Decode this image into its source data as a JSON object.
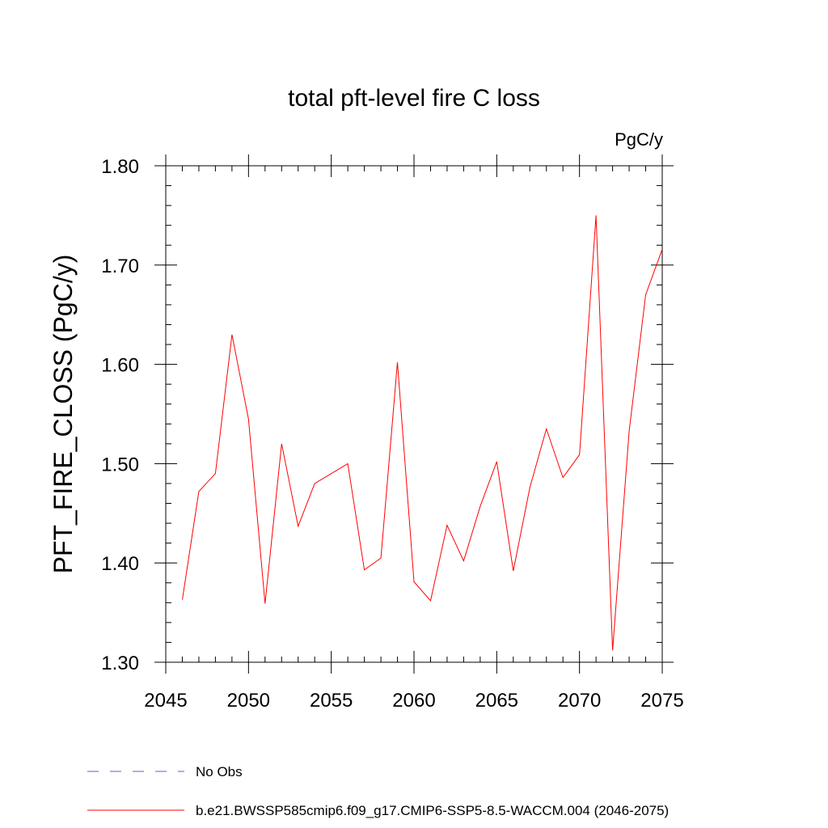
{
  "chart_data": {
    "type": "line",
    "title": "total pft-level fire C loss",
    "units_label": "PgC/y",
    "xlabel": "",
    "ylabel": "PFT_FIRE_CLOSS  (PgC/y)",
    "xlim": [
      2045,
      2075
    ],
    "ylim": [
      1.3,
      1.8
    ],
    "x_ticks": [
      2045,
      2050,
      2055,
      2060,
      2065,
      2070,
      2075
    ],
    "x_tick_labels": [
      "2045",
      "2050",
      "2055",
      "2060",
      "2065",
      "2070",
      "2075"
    ],
    "y_ticks": [
      1.3,
      1.4,
      1.5,
      1.6,
      1.7,
      1.8
    ],
    "y_tick_labels": [
      "1.30",
      "1.40",
      "1.50",
      "1.60",
      "1.70",
      "1.80"
    ],
    "grid": false,
    "legend_position": "bottom",
    "series": [
      {
        "name": "b.e21.BWSSP585cmip6.f09_g17.CMIP6-SSP5-8.5-WACCM.004 (2046-2075)",
        "color": "#ff0000",
        "style": "solid",
        "x": [
          2046,
          2047,
          2048,
          2049,
          2050,
          2051,
          2052,
          2053,
          2054,
          2055,
          2056,
          2057,
          2058,
          2059,
          2060,
          2061,
          2062,
          2063,
          2064,
          2065,
          2066,
          2067,
          2068,
          2069,
          2070,
          2071,
          2072,
          2073,
          2074,
          2075
        ],
        "values": [
          1.363,
          1.472,
          1.49,
          1.63,
          1.545,
          1.359,
          1.52,
          1.437,
          1.48,
          1.49,
          1.5,
          1.393,
          1.405,
          1.602,
          1.381,
          1.362,
          1.438,
          1.402,
          1.457,
          1.502,
          1.392,
          1.476,
          1.535,
          1.486,
          1.509,
          1.75,
          1.312,
          1.533,
          1.67,
          1.716
        ]
      }
    ],
    "legend": [
      {
        "label": "No Obs",
        "color": "#6a5acd",
        "style": "dashed"
      },
      {
        "label": "b.e21.BWSSP585cmip6.f09_g17.CMIP6-SSP5-8.5-WACCM.004 (2046-2075)",
        "color": "#ff0000",
        "style": "solid"
      }
    ]
  }
}
